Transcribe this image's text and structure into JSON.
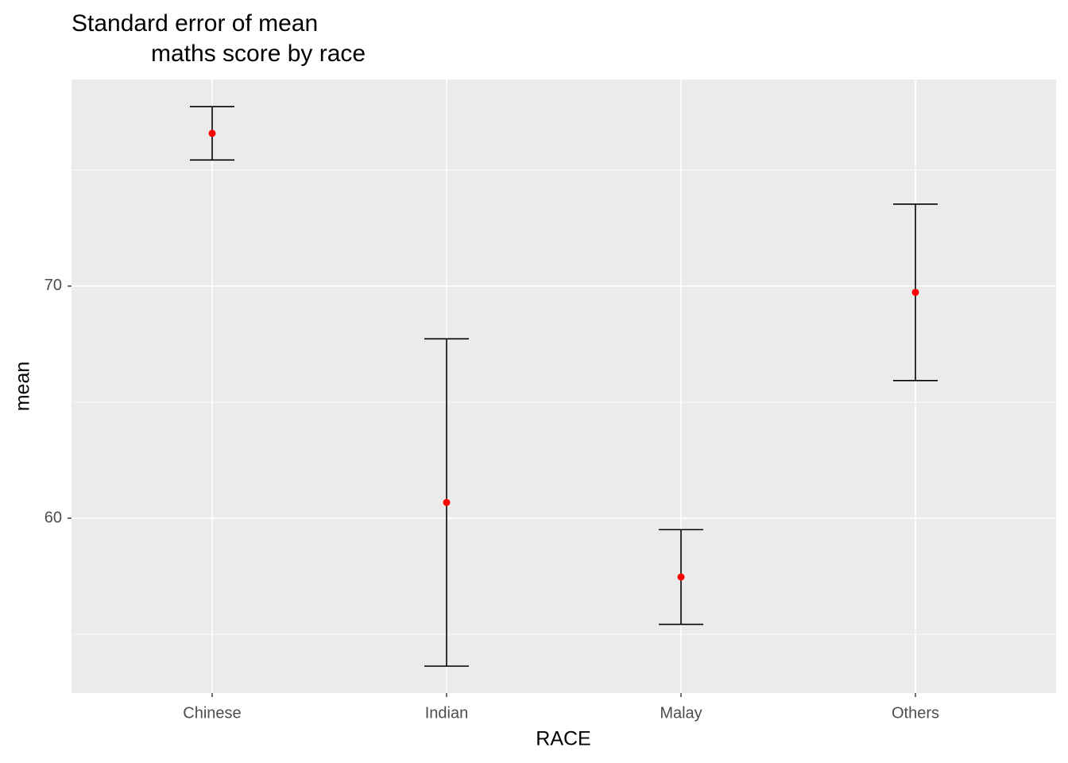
{
  "chart_data": {
    "type": "errorbar",
    "title": [
      "Standard error of mean",
      "maths score by race"
    ],
    "x_label": "RACE",
    "y_label": "mean",
    "categories": [
      "Chinese",
      "Indian",
      "Malay",
      "Others"
    ],
    "values": [
      76.58,
      60.68,
      57.47,
      69.73
    ],
    "errors": [
      1.15,
      7.05,
      2.04,
      3.8
    ],
    "point_color": "#ff0000",
    "bar_color": "#000000",
    "ylim": [
      52.47,
      78.9
    ],
    "yticks": [
      60,
      70
    ],
    "y_minor_ticks": [
      55,
      65,
      75
    ],
    "grid": true
  }
}
